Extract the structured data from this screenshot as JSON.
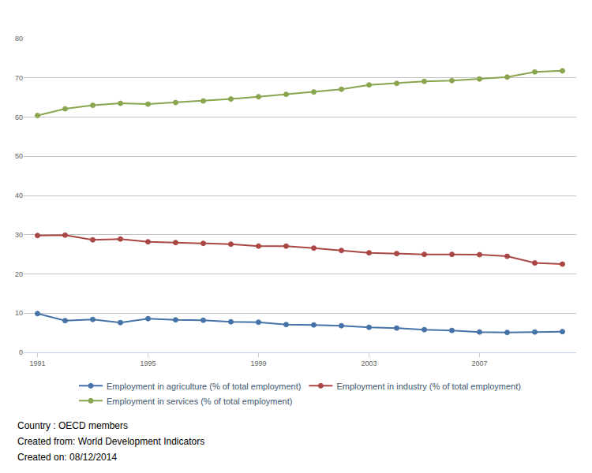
{
  "chart_data": {
    "type": "line",
    "x": [
      1991,
      1992,
      1993,
      1994,
      1995,
      1996,
      1997,
      1998,
      1999,
      2000,
      2001,
      2002,
      2003,
      2004,
      2005,
      2006,
      2007,
      2008,
      2009,
      2010
    ],
    "series": [
      {
        "name": "Employment in agriculture (% of total employment)",
        "color": "#4572a7",
        "values": [
          9.9,
          8.1,
          8.4,
          7.6,
          8.6,
          8.3,
          8.2,
          7.8,
          7.7,
          7.1,
          7.0,
          6.8,
          6.4,
          6.2,
          5.8,
          5.6,
          5.2,
          5.1,
          5.2,
          5.3
        ]
      },
      {
        "name": "Employment in industry (% of total employment)",
        "color": "#aa4643",
        "values": [
          29.8,
          29.9,
          28.7,
          28.9,
          28.2,
          28.0,
          27.8,
          27.6,
          27.1,
          27.1,
          26.6,
          26.0,
          25.4,
          25.2,
          25.0,
          25.0,
          24.9,
          24.5,
          22.8,
          22.5
        ]
      },
      {
        "name": "Employment in services (% of total employment)",
        "color": "#89a54e",
        "values": [
          60.4,
          62.1,
          63.0,
          63.5,
          63.3,
          63.7,
          64.1,
          64.6,
          65.2,
          65.8,
          66.4,
          67.1,
          68.2,
          68.6,
          69.1,
          69.3,
          69.7,
          70.2,
          71.5,
          71.8
        ]
      }
    ],
    "xlim": [
      1990.5,
      2010.5
    ],
    "xticks": [
      1991,
      1995,
      1999,
      2003,
      2007
    ],
    "ylim": [
      0,
      80
    ],
    "yticks": [
      0,
      10,
      20,
      30,
      40,
      50,
      60,
      70,
      80
    ],
    "grid": true,
    "legend": "bottom",
    "marker": "circle",
    "annotations": [
      "Country : OECD members",
      "Created from: World Development Indicators",
      "Created on: 08/12/2014"
    ]
  }
}
